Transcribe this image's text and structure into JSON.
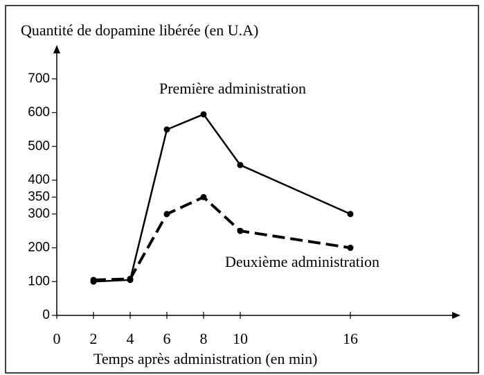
{
  "chart_data": {
    "type": "line",
    "y_label": "Quantité de dopamine libérée (en U.A)",
    "x_label": "Temps après administration (en min)",
    "x": [
      2,
      4,
      6,
      8,
      10,
      16
    ],
    "series": [
      {
        "name": "Première administration",
        "color": "#000000",
        "dash": false,
        "values": [
          100,
          105,
          550,
          595,
          445,
          300
        ]
      },
      {
        "name": "Deuxième administration",
        "color": "#000000",
        "dash": true,
        "values": [
          105,
          108,
          300,
          350,
          250,
          200
        ]
      }
    ],
    "xlim": [
      0,
      22
    ],
    "xticks": [
      0,
      2,
      4,
      6,
      8,
      10,
      16
    ],
    "ylim": [
      0,
      800
    ],
    "yticks": [
      0,
      100,
      200,
      300,
      350,
      400,
      500,
      600,
      700
    ]
  }
}
